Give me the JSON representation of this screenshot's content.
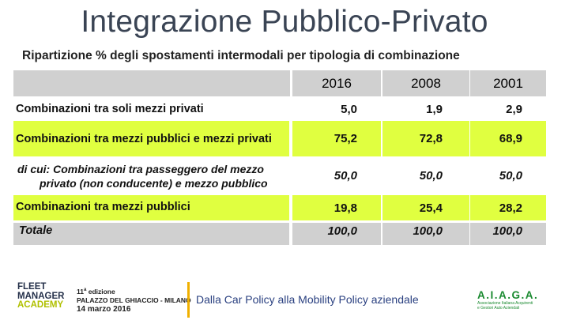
{
  "title": "Integrazione Pubblico-Privato",
  "subtitle": "Ripartizione % degli spostamenti intermodali per tipologia di combinazione",
  "table": {
    "years": [
      "2016",
      "2008",
      "2001"
    ],
    "rows": [
      {
        "label": "Combinazioni tra soli mezzi privati",
        "values": [
          "5,0",
          "1,9",
          "2,9"
        ]
      },
      {
        "label": "Combinazioni tra mezzi pubblici e mezzi privati",
        "values": [
          "75,2",
          "72,8",
          "68,9"
        ]
      },
      {
        "label_line1": "di cui: Combinazioni tra passeggero del mezzo",
        "label_line2": "privato (non conducente) e mezzo pubblico",
        "values": [
          "50,0",
          "50,0",
          "50,0"
        ]
      },
      {
        "label": "Combinazioni tra mezzi pubblici",
        "values": [
          "19,8",
          "25,4",
          "28,2"
        ]
      },
      {
        "label": "Totale",
        "values": [
          "100,0",
          "100,0",
          "100,0"
        ]
      }
    ]
  },
  "footer": {
    "logo_line1": "FLEET",
    "logo_line2": "MANAGER",
    "logo_line3": "ACADEMY",
    "event_edition_num": "11",
    "event_edition_sup": "a",
    "event_edition_word": "edizione",
    "event_venue": "PALAZZO DEL GHIACCIO - MILANO",
    "event_date": "14 marzo 2016",
    "tagline": "Dalla Car Policy alla Mobility Policy aziendale",
    "partner_name": "A.I.A.G.A.",
    "partner_line1": "Associazione Italiana Acquirenti",
    "partner_line2": "e Gestori Auto Aziendali"
  }
}
